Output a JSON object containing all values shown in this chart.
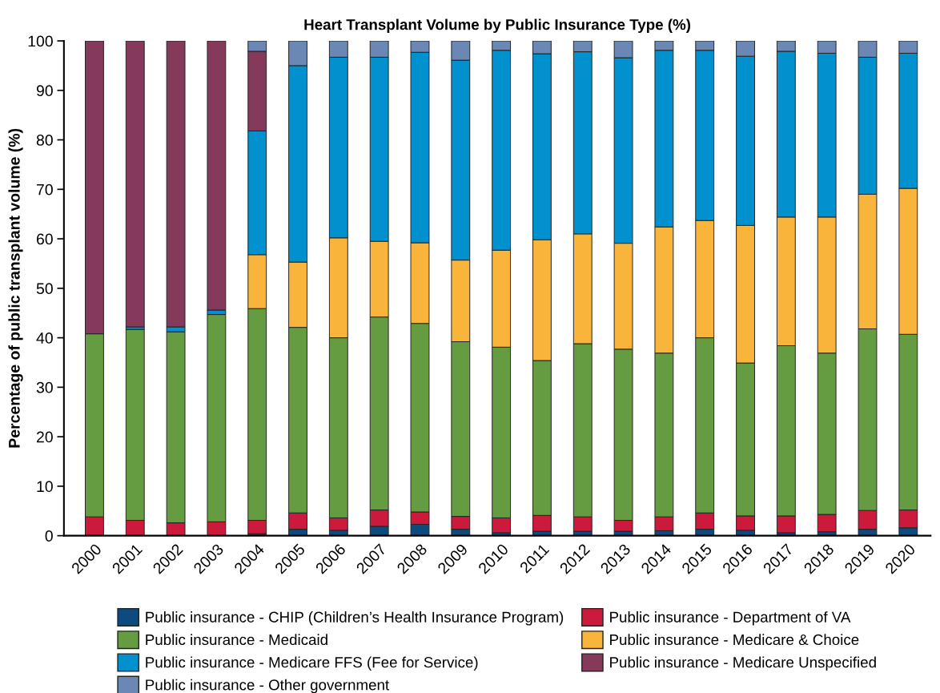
{
  "chart_data": {
    "type": "bar",
    "title": "Heart Transplant Volume by Public Insurance Type (%)",
    "ylabel": "Percentage of public transplant volume (%)",
    "categories": [
      "2000",
      "2001",
      "2002",
      "2003",
      "2004",
      "2005",
      "2006",
      "2007",
      "2008",
      "2009",
      "2010",
      "2011",
      "2012",
      "2013",
      "2014",
      "2015",
      "2016",
      "2017",
      "2018",
      "2019",
      "2020"
    ],
    "stacked": true,
    "ylim": [
      0,
      100
    ],
    "yticks": [
      0,
      10,
      20,
      30,
      40,
      50,
      60,
      70,
      80,
      90,
      100
    ],
    "grid": false,
    "legend": "bottom",
    "series": [
      {
        "name": "Public insurance - CHIP (Children’s Health Insurance Program)",
        "color": "#0d4a7e",
        "values": [
          0,
          0,
          0,
          0,
          0.4,
          1.3,
          1.1,
          1.9,
          2.3,
          1.3,
          0.6,
          0.9,
          0.9,
          0.9,
          1.0,
          1.3,
          1.1,
          0.6,
          0.8,
          1.3,
          1.6
        ]
      },
      {
        "name": "Public insurance - Department of VA",
        "color": "#cc1a3c",
        "values": [
          3.8,
          3.1,
          2.6,
          2.8,
          2.7,
          3.3,
          2.5,
          3.3,
          2.5,
          2.6,
          3.0,
          3.2,
          2.9,
          2.2,
          2.8,
          3.3,
          2.9,
          3.4,
          3.5,
          3.8,
          3.6
        ]
      },
      {
        "name": "Public insurance - Medicaid",
        "color": "#669c41",
        "values": [
          37.0,
          38.6,
          38.6,
          41.9,
          42.8,
          37.5,
          36.4,
          39.0,
          38.1,
          35.3,
          34.5,
          31.3,
          35.0,
          34.6,
          33.1,
          35.4,
          30.9,
          34.4,
          32.6,
          36.7,
          35.5
        ]
      },
      {
        "name": "Public insurance - Medicare & Choice",
        "color": "#f9b53b",
        "values": [
          0,
          0,
          0,
          0,
          10.9,
          13.2,
          20.2,
          15.3,
          16.3,
          16.5,
          19.6,
          24.4,
          22.2,
          21.4,
          25.5,
          23.7,
          27.8,
          26.0,
          27.5,
          27.2,
          29.5
        ]
      },
      {
        "name": "Public insurance - Medicare FFS (Fee for Service)",
        "color": "#0191cf",
        "values": [
          0,
          0.5,
          1.0,
          0.9,
          25.0,
          39.7,
          36.5,
          37.2,
          38.5,
          40.4,
          40.4,
          37.6,
          36.8,
          37.5,
          35.7,
          34.4,
          34.2,
          33.5,
          33.1,
          27.7,
          27.3
        ]
      },
      {
        "name": "Public insurance - Medicare Unspecified",
        "color": "#853a5b",
        "values": [
          59.2,
          57.8,
          57.8,
          54.4,
          16.1,
          0,
          0,
          0,
          0,
          0,
          0,
          0,
          0,
          0,
          0,
          0,
          0,
          0,
          0,
          0,
          0
        ]
      },
      {
        "name": "Public insurance - Other government",
        "color": "#6b87b4",
        "values": [
          0,
          0,
          0,
          0,
          2.1,
          5.0,
          3.3,
          3.3,
          2.3,
          3.9,
          1.9,
          2.6,
          2.2,
          3.4,
          1.9,
          1.9,
          3.1,
          2.1,
          2.5,
          3.3,
          2.5
        ]
      }
    ]
  }
}
